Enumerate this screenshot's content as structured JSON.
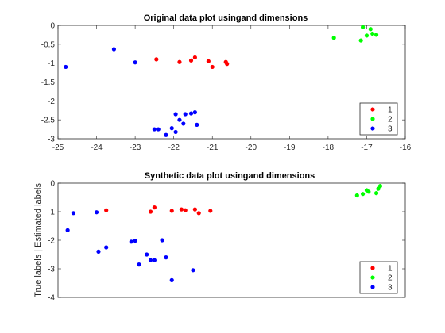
{
  "colors": {
    "series_1": "#ff0000",
    "series_2": "#00ff00",
    "series_3": "#0000ff"
  },
  "chart_data": [
    {
      "type": "scatter",
      "title": "Original data plot usingand dimensions",
      "xlabel": "",
      "ylabel": "",
      "xlim": [
        -25,
        -16
      ],
      "ylim": [
        -3,
        0
      ],
      "xticks": [
        -25,
        -24,
        -23,
        -22,
        -21,
        -20,
        -19,
        -18,
        -17,
        -16
      ],
      "yticks": [
        0,
        -0.5,
        -1,
        -1.5,
        -2,
        -2.5,
        -3
      ],
      "grid": false,
      "legend": "bottom-right",
      "series": [
        {
          "name": "1",
          "color": "#ff0000",
          "points": [
            [
              -22.45,
              -0.9
            ],
            [
              -21.85,
              -0.97
            ],
            [
              -21.55,
              -0.93
            ],
            [
              -21.45,
              -0.85
            ],
            [
              -21.1,
              -0.95
            ],
            [
              -21.0,
              -1.1
            ],
            [
              -20.65,
              -0.97
            ],
            [
              -20.62,
              -1.02
            ]
          ]
        },
        {
          "name": "2",
          "color": "#00ff00",
          "points": [
            [
              -17.85,
              -0.33
            ],
            [
              -17.15,
              -0.4
            ],
            [
              -17.1,
              -0.05
            ],
            [
              -17.0,
              -0.27
            ],
            [
              -16.9,
              -0.1
            ],
            [
              -16.85,
              -0.22
            ],
            [
              -16.75,
              -0.25
            ]
          ]
        },
        {
          "name": "3",
          "color": "#0000ff",
          "points": [
            [
              -24.8,
              -1.1
            ],
            [
              -23.55,
              -0.63
            ],
            [
              -23.0,
              -0.98
            ],
            [
              -22.5,
              -2.75
            ],
            [
              -22.4,
              -2.75
            ],
            [
              -22.2,
              -2.9
            ],
            [
              -22.05,
              -2.72
            ],
            [
              -21.95,
              -2.35
            ],
            [
              -21.95,
              -2.82
            ],
            [
              -21.85,
              -2.5
            ],
            [
              -21.75,
              -2.6
            ],
            [
              -21.7,
              -2.35
            ],
            [
              -21.55,
              -2.33
            ],
            [
              -21.45,
              -2.3
            ],
            [
              -21.4,
              -2.63
            ]
          ]
        }
      ]
    },
    {
      "type": "scatter",
      "title": "Synthetic data plot usingand dimensions",
      "xlabel": "",
      "ylabel": "True labels | Estimated labels",
      "xlim": [
        -25,
        -16
      ],
      "ylim": [
        -4,
        0
      ],
      "yticks": [
        0,
        -1,
        -2,
        -3,
        -4
      ],
      "grid": false,
      "legend": "bottom-right",
      "series": [
        {
          "name": "1",
          "color": "#ff0000",
          "points": [
            [
              -23.75,
              -0.95
            ],
            [
              -22.6,
              -1.0
            ],
            [
              -22.5,
              -0.85
            ],
            [
              -22.05,
              -0.97
            ],
            [
              -21.8,
              -0.92
            ],
            [
              -21.7,
              -0.95
            ],
            [
              -21.45,
              -0.92
            ],
            [
              -21.35,
              -1.05
            ],
            [
              -21.05,
              -0.97
            ]
          ]
        },
        {
          "name": "2",
          "color": "#00ff00",
          "points": [
            [
              -17.25,
              -0.43
            ],
            [
              -17.1,
              -0.38
            ],
            [
              -17.0,
              -0.25
            ],
            [
              -16.95,
              -0.3
            ],
            [
              -16.75,
              -0.35
            ],
            [
              -16.7,
              -0.2
            ],
            [
              -16.65,
              -0.1
            ]
          ]
        },
        {
          "name": "3",
          "color": "#0000ff",
          "points": [
            [
              -24.75,
              -1.65
            ],
            [
              -24.6,
              -1.05
            ],
            [
              -24.0,
              -1.02
            ],
            [
              -23.95,
              -2.4
            ],
            [
              -23.75,
              -2.25
            ],
            [
              -23.1,
              -2.05
            ],
            [
              -23.0,
              -2.02
            ],
            [
              -22.9,
              -2.85
            ],
            [
              -22.7,
              -2.5
            ],
            [
              -22.6,
              -2.7
            ],
            [
              -22.5,
              -2.7
            ],
            [
              -22.3,
              -2.0
            ],
            [
              -22.2,
              -2.6
            ],
            [
              -22.05,
              -3.4
            ],
            [
              -21.5,
              -3.05
            ]
          ]
        }
      ]
    }
  ]
}
